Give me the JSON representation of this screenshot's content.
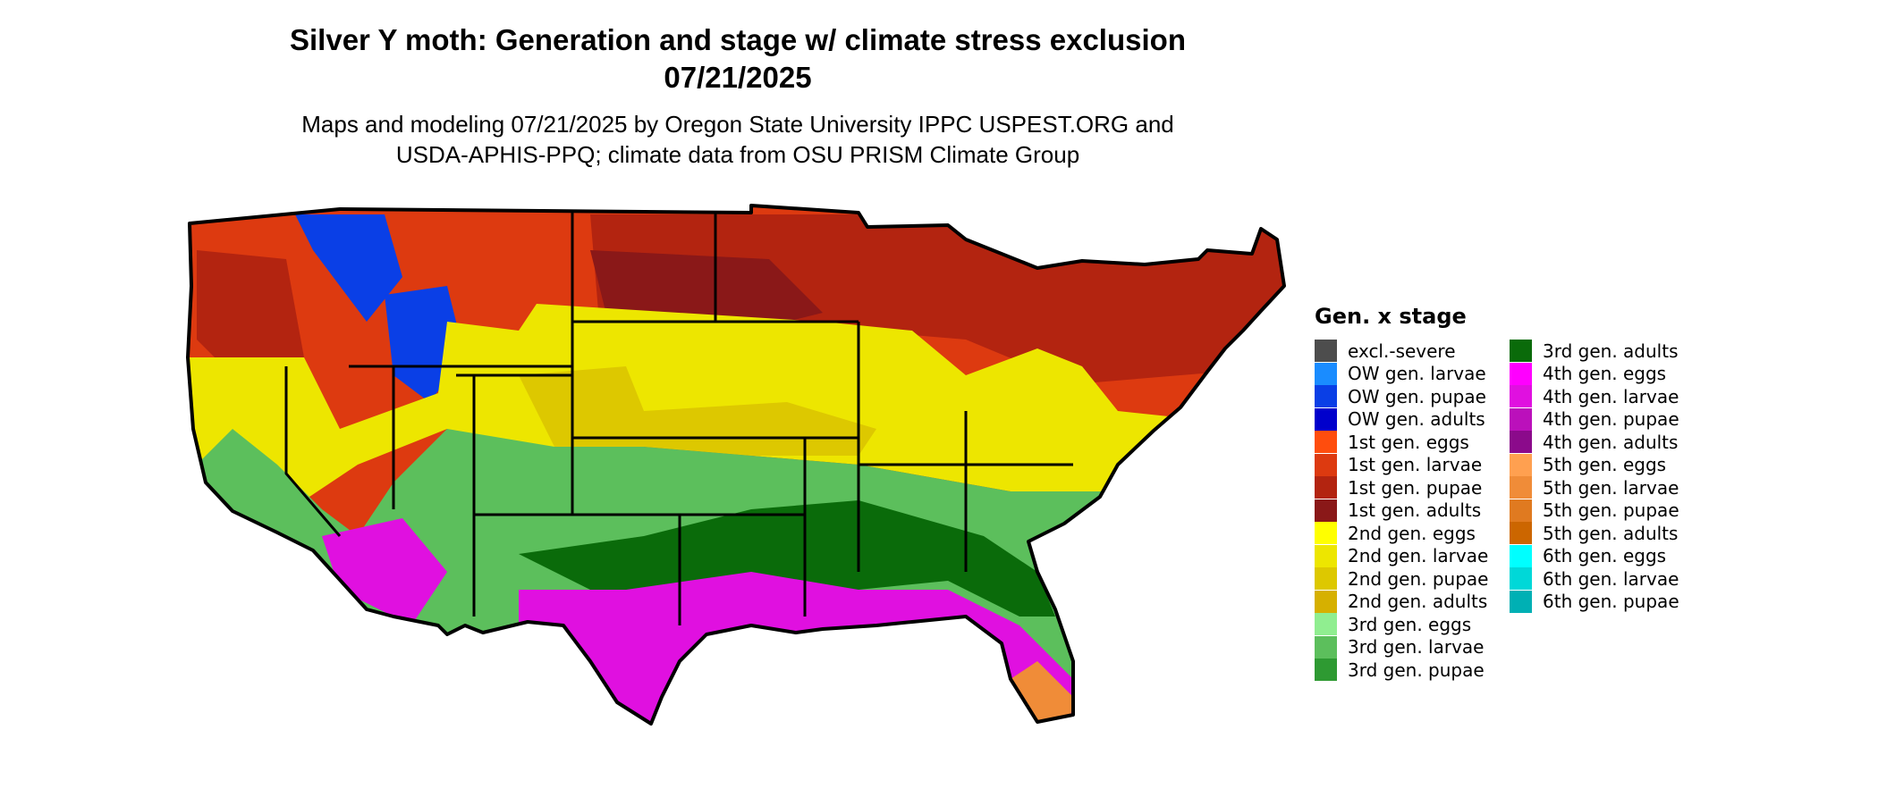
{
  "title_line1": "Silver Y moth: Generation and stage w/ climate stress exclusion",
  "title_line2": "07/21/2025",
  "subtitle_line1": "Maps and modeling 07/21/2025 by Oregon State University IPPC USPEST.ORG and",
  "subtitle_line2": "USDA-APHIS-PPQ; climate data from OSU PRISM Climate Group",
  "legend": {
    "title": "Gen. x stage",
    "col1": [
      {
        "label": "excl.-severe",
        "color": "#4d4d4d"
      },
      {
        "label": "OW gen. larvae",
        "color": "#1a8cff"
      },
      {
        "label": "OW gen. pupae",
        "color": "#0a3fe6"
      },
      {
        "label": "OW gen. adults",
        "color": "#0000cc"
      },
      {
        "label": "1st gen. eggs",
        "color": "#ff4d0d"
      },
      {
        "label": "1st gen. larvae",
        "color": "#dd3a10"
      },
      {
        "label": "1st gen. pupae",
        "color": "#b32410"
      },
      {
        "label": "1st gen. adults",
        "color": "#8a1818"
      },
      {
        "label": "2nd gen. eggs",
        "color": "#ffff00"
      },
      {
        "label": "2nd gen. larvae",
        "color": "#ede600"
      },
      {
        "label": "2nd gen. pupae",
        "color": "#ddc800"
      },
      {
        "label": "2nd gen. adults",
        "color": "#d6b000"
      },
      {
        "label": "3rd gen. eggs",
        "color": "#90ee90"
      },
      {
        "label": "3rd gen. larvae",
        "color": "#5cbf5c"
      },
      {
        "label": "3rd gen. pupae",
        "color": "#2e9a32"
      }
    ],
    "col2": [
      {
        "label": "3rd gen. adults",
        "color": "#0a6b0a"
      },
      {
        "label": "4th gen. eggs",
        "color": "#ff00ff"
      },
      {
        "label": "4th gen. larvae",
        "color": "#e010e0"
      },
      {
        "label": "4th gen. pupae",
        "color": "#bb10bb"
      },
      {
        "label": "4th gen. adults",
        "color": "#8b0a8b"
      },
      {
        "label": "5th gen. eggs",
        "color": "#ffa050"
      },
      {
        "label": "5th gen. larvae",
        "color": "#f08c38"
      },
      {
        "label": "5th gen. pupae",
        "color": "#e07a20"
      },
      {
        "label": "5th gen. adults",
        "color": "#cc6600"
      },
      {
        "label": "6th gen. eggs",
        "color": "#00ffff"
      },
      {
        "label": "6th gen. larvae",
        "color": "#00d8d8"
      },
      {
        "label": "6th gen. pupae",
        "color": "#00b0b4"
      }
    ]
  }
}
